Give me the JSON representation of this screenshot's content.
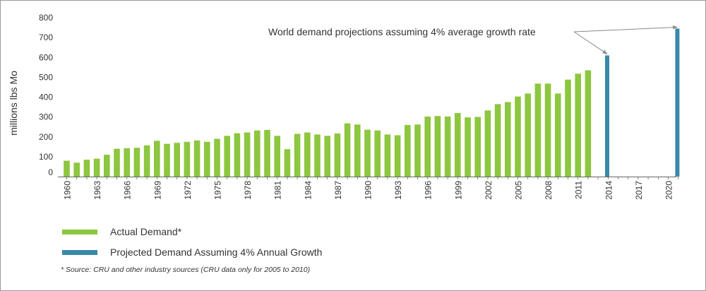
{
  "chart_data": {
    "type": "bar",
    "ylabel": "millions lbs Mo",
    "ylim": [
      0,
      800
    ],
    "yticks": [
      0,
      100,
      200,
      300,
      400,
      500,
      600,
      700,
      800
    ],
    "xticks": [
      "1960",
      "1963",
      "1966",
      "1969",
      "1972",
      "1975",
      "1978",
      "1981",
      "1984",
      "1987",
      "1990",
      "1993",
      "1996",
      "1999",
      "2002",
      "2005",
      "2008",
      "2011",
      "2014",
      "2017",
      "2020"
    ],
    "grid": false,
    "legend_position": "bottom-left",
    "annotation": "World demand projections assuming 4% average growth rate",
    "series": [
      {
        "name": "Actual Demand*",
        "color": "#8dc63f",
        "x": [
          1960,
          1961,
          1962,
          1963,
          1964,
          1965,
          1966,
          1967,
          1968,
          1969,
          1970,
          1971,
          1972,
          1973,
          1974,
          1975,
          1976,
          1977,
          1978,
          1979,
          1980,
          1981,
          1982,
          1983,
          1984,
          1985,
          1986,
          1987,
          1988,
          1989,
          1990,
          1991,
          1992,
          1993,
          1994,
          1995,
          1996,
          1997,
          1998,
          1999,
          2000,
          2001,
          2002,
          2003,
          2004,
          2005,
          2006,
          2007,
          2008,
          2009,
          2010,
          2011,
          2012
        ],
        "values": [
          80,
          70,
          85,
          90,
          110,
          140,
          143,
          145,
          157,
          180,
          165,
          170,
          175,
          182,
          175,
          190,
          205,
          218,
          222,
          232,
          235,
          205,
          138,
          215,
          222,
          212,
          205,
          217,
          268,
          262,
          236,
          232,
          212,
          208,
          260,
          262,
          302,
          305,
          302,
          320,
          298,
          300,
          333,
          365,
          375,
          403,
          418,
          468,
          468,
          418,
          488,
          518,
          535
        ]
      },
      {
        "name": "Projected Demand Assuming 4% Annual Growth",
        "color": "#3a88a8",
        "x": [
          2014,
          2021
        ],
        "values": [
          610,
          745
        ]
      }
    ]
  },
  "footnote": "* Source: CRU and other industry sources (CRU data only for 2005 to 2010)"
}
